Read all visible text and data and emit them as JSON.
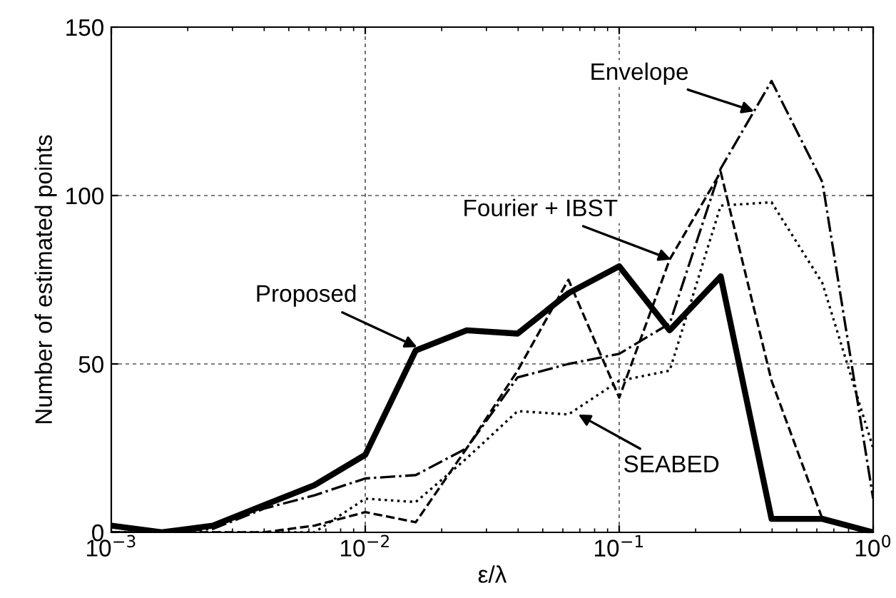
{
  "chart_data": {
    "type": "line",
    "xlabel": "ε/λ",
    "ylabel": "Number of estimated points",
    "log": "x",
    "grid": true,
    "marker": "none",
    "x": [
      0.001,
      0.00158,
      0.00251,
      0.00398,
      0.00631,
      0.01,
      0.0158,
      0.0251,
      0.0398,
      0.0631,
      0.1,
      0.158,
      0.251,
      0.398,
      0.631,
      1
    ],
    "xlim": [
      0.001,
      1
    ],
    "xticks": [
      {
        "value": 0.001,
        "label": "10$^{−3}$"
      },
      {
        "value": 0.01,
        "label": "10$^{−2}$"
      },
      {
        "value": 0.1,
        "label": "10$^{−1}$"
      },
      {
        "value": 1,
        "label": "10$^{0}$"
      }
    ],
    "ylim": [
      0,
      150
    ],
    "yticks": [
      0,
      50,
      100,
      150
    ],
    "series": [
      {
        "color": "#000000",
        "line_style": "solid",
        "values": [
          2,
          0,
          2,
          8,
          14,
          23,
          54,
          60,
          59,
          71,
          79,
          60,
          76,
          4,
          4,
          0
        ]
      },
      {
        "color": "#000000",
        "line_style": "dashdot",
        "values": [
          0,
          0,
          1,
          7,
          11,
          16,
          17,
          25,
          46,
          50,
          53,
          62,
          108,
          134,
          104,
          10
        ]
      },
      {
        "color": "#000000",
        "line_style": "dashed",
        "values": [
          0,
          0,
          0,
          0,
          2,
          6,
          3,
          25,
          48,
          75,
          40,
          81,
          107,
          45,
          4,
          0
        ]
      },
      {
        "color": "#000000",
        "line_style": "dotted",
        "values": [
          0,
          0,
          0,
          0,
          0,
          10,
          9,
          22,
          36,
          35,
          45,
          48,
          97,
          98,
          74,
          25
        ]
      }
    ],
    "annotations": [
      {
        "text": "Proposed",
        "x": 0.016,
        "y": 55
      },
      {
        "text": "Envelope",
        "x": 0.34,
        "y": 125
      },
      {
        "text": "Fourier + IBST",
        "x": 0.16,
        "y": 81
      },
      {
        "text": "SEABED",
        "x": 0.069,
        "y": 35
      }
    ]
  }
}
